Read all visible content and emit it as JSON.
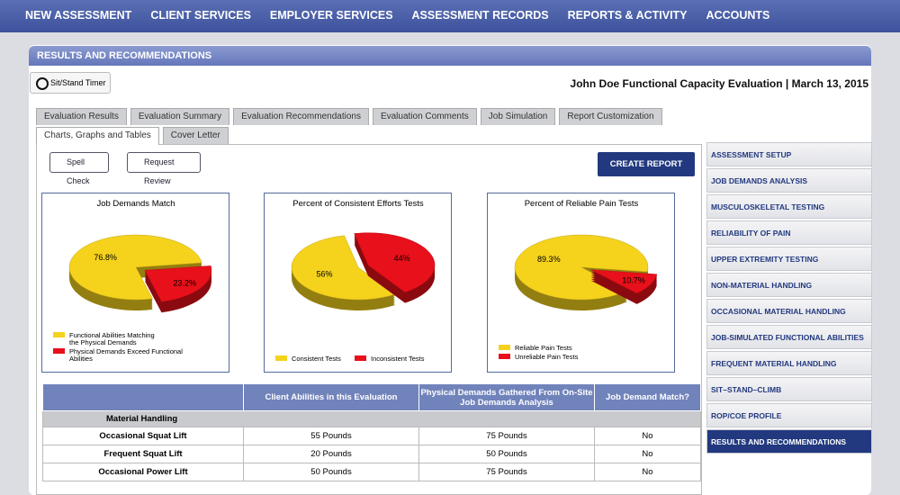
{
  "nav": [
    "NEW ASSESSMENT",
    "CLIENT SERVICES",
    "EMPLOYER SERVICES",
    "ASSESSMENT RECORDS",
    "REPORTS & ACTIVITY",
    "ACCOUNTS"
  ],
  "panel_title": "RESULTS AND RECOMMENDATIONS",
  "timer_button": "Sit/Stand Timer",
  "report_title": "John Doe Functional Capacity Evaluation | March 13, 2015",
  "tabs_row1": [
    "Evaluation Results",
    "Evaluation Summary",
    "Evaluation Recommendations",
    "Evaluation Comments",
    "Job Simulation",
    "Report Customization"
  ],
  "tabs_row2": [
    "Charts, Graphs and Tables",
    "Cover Letter"
  ],
  "buttons": {
    "spell_check": "Spell Check",
    "request_review": "Request Review",
    "create_report": "CREATE REPORT"
  },
  "sidebar": [
    "ASSESSMENT SETUP",
    "JOB DEMANDS ANALYSIS",
    "MUSCULOSKELETAL TESTING",
    "RELIABILITY OF PAIN",
    "UPPER EXTREMITY TESTING",
    "NON-MATERIAL HANDLING",
    "OCCASIONAL MATERIAL HANDLING",
    "JOB-SIMULATED FUNCTIONAL ABILITIES",
    "FREQUENT MATERIAL HANDLING",
    "SIT–STAND–CLIMB",
    "ROP/COE PROFILE",
    "RESULTS AND RECOMMENDATIONS"
  ],
  "chart_data": [
    {
      "type": "pie",
      "title": "Job Demands Match",
      "categories": [
        "Functional Abilities Matching the Physical Demands",
        "Physical Demands Exceed Functional Abilities"
      ],
      "values": [
        76.8,
        23.2
      ],
      "value_labels": [
        "76.8%",
        "23.2%"
      ],
      "colors": [
        "#f5d21c",
        "#e8101a"
      ],
      "legend": "stacked"
    },
    {
      "type": "pie",
      "title": "Percent of Consistent Efforts Tests",
      "categories": [
        "Consistent Tests",
        "Inconsistent Tests"
      ],
      "values": [
        56,
        44
      ],
      "value_labels": [
        "56%",
        "44%"
      ],
      "colors": [
        "#f5d21c",
        "#e8101a"
      ],
      "legend": "row"
    },
    {
      "type": "pie",
      "title": "Percent of Reliable Pain Tests",
      "categories": [
        "Reliable Pain Tests",
        "Unreliable Pain Tests"
      ],
      "values": [
        89.3,
        10.7
      ],
      "value_labels": [
        "89.3%",
        "10.7%"
      ],
      "colors": [
        "#f5d21c",
        "#e8101a"
      ],
      "legend": "stacked"
    }
  ],
  "table": {
    "headers": [
      "Client Abilities in this Evaluation",
      "Physical Demands Gathered From On-Site Job Demands Analysis",
      "Job Demand Match?"
    ],
    "section": "Material Handling",
    "rows": [
      [
        "Occasional Squat Lift",
        "55 Pounds",
        "75 Pounds",
        "No"
      ],
      [
        "Frequent Squat Lift",
        "20 Pounds",
        "50 Pounds",
        "No"
      ],
      [
        "Occasional Power Lift",
        "50 Pounds",
        "75 Pounds",
        "No"
      ]
    ]
  }
}
